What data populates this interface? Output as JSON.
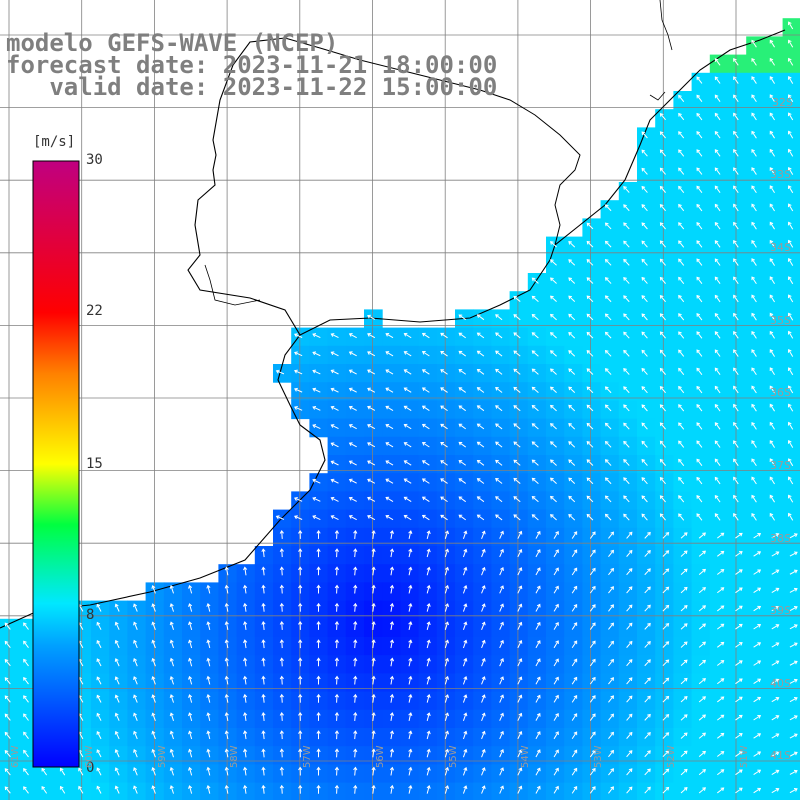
{
  "title": {
    "line1": "modelo GEFS-WAVE (NCEP)",
    "line2": "forecast date: 2023-11-21 18:00:00",
    "line3": "   valid date: 2023-11-22 15:00:00"
  },
  "colorbar": {
    "unit": "[m/s]",
    "ticks": [
      "30",
      "22",
      "15",
      "8",
      "0"
    ],
    "colors": [
      "#0000ff",
      "#00a0ff",
      "#00e0ff",
      "#00ff80",
      "#80ff00",
      "#ffff00",
      "#ff8000",
      "#ff0000",
      "#ff0080",
      "#c00080"
    ]
  },
  "grid": {
    "lat_labels": [
      "32S",
      "33S",
      "34S",
      "35S",
      "36S",
      "37S",
      "38S",
      "39S",
      "40S",
      "41S"
    ],
    "lon_labels": [
      "61W",
      "60W",
      "59W",
      "58W",
      "57W",
      "56W",
      "55W",
      "54W",
      "53W",
      "52W",
      "51W"
    ]
  },
  "colors": {
    "ocean_low": "#0010ff",
    "ocean_mid": "#0090ff",
    "ocean_high": "#00d8ff",
    "land": "#ffffff",
    "coast": "#000000",
    "grid": "#7f7f7f",
    "arrow": "#ffffff"
  }
}
